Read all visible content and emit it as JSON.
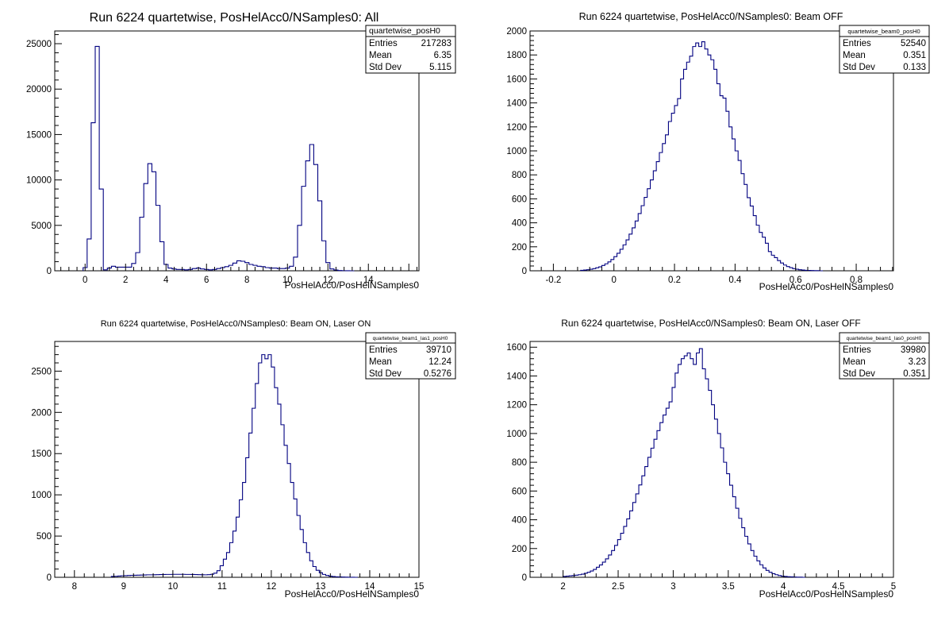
{
  "chart_data": [
    {
      "type": "histogram",
      "title": "Run 6224 quartetwise, PosHelAcc0/NSamples0: All",
      "xlabel": "PosHelAcc0/PosHelNSamples0",
      "ylabel": "",
      "xlim": [
        -1.5,
        16.5
      ],
      "ylim": [
        0,
        26400
      ],
      "xticks": [
        0,
        2,
        4,
        6,
        8,
        10,
        12,
        14
      ],
      "yticks": [
        0,
        5000,
        10000,
        15000,
        20000,
        25000
      ],
      "line_color": "#000080",
      "stats": {
        "name": "quartetwise_posH0",
        "rows": [
          {
            "label": "Entries",
            "value": "217283"
          },
          {
            "label": "Mean",
            "value": "6.35"
          },
          {
            "label": "Std Dev",
            "value": "5.115"
          }
        ]
      },
      "bin_edges_start": -0.1,
      "bin_width": 0.2,
      "counts": [
        350,
        3500,
        16300,
        24700,
        9000,
        100,
        300,
        500,
        400,
        400,
        400,
        400,
        800,
        2000,
        5900,
        9600,
        11800,
        10900,
        7200,
        3200,
        700,
        300,
        200,
        150,
        150,
        100,
        150,
        250,
        300,
        200,
        150,
        100,
        150,
        250,
        350,
        450,
        600,
        850,
        1100,
        1050,
        900,
        700,
        600,
        500,
        450,
        350,
        300,
        300,
        250,
        250,
        300,
        500,
        1500,
        5000,
        9300,
        12100,
        13900,
        11700,
        7700,
        3300,
        900,
        200,
        80,
        30,
        10,
        5,
        0
      ]
    },
    {
      "type": "histogram",
      "title": "Run 6224 quartetwise, PosHelAcc0/NSamples0: Beam OFF",
      "xlabel": "PosHelAcc0/PosHelNSamples0",
      "ylabel": "",
      "xlim": [
        -0.277,
        0.923
      ],
      "ylim": [
        0,
        2000
      ],
      "xticks": [
        -0.2,
        0,
        0.2,
        0.4,
        0.6,
        0.8
      ],
      "yticks": [
        0,
        200,
        400,
        600,
        800,
        1000,
        1200,
        1400,
        1600,
        1800,
        2000
      ],
      "line_color": "#000080",
      "stats": {
        "name": "quartetwise_beam0_posH0",
        "rows": [
          {
            "label": "Entries",
            "value": "52540"
          },
          {
            "label": "Mean",
            "value": "0.351"
          },
          {
            "label": "Std Dev",
            "value": "0.133"
          }
        ]
      },
      "bin_edges_start": -0.11,
      "bin_width": 0.01,
      "counts": [
        4,
        6,
        9,
        13,
        18,
        25,
        33,
        44,
        58,
        74,
        94,
        118,
        146,
        179,
        216,
        258,
        306,
        358,
        415,
        477,
        543,
        612,
        684,
        758,
        834,
        910,
        986,
        1061,
        1134,
        1245,
        1314,
        1378,
        1436,
        1600,
        1680,
        1740,
        1790,
        1870,
        1900,
        1870,
        1910,
        1850,
        1800,
        1760,
        1680,
        1560,
        1460,
        1440,
        1330,
        1200,
        1100,
        1000,
        920,
        810,
        720,
        610,
        540,
        460,
        380,
        320,
        280,
        230,
        160,
        130,
        110,
        85,
        65,
        48,
        35,
        26,
        18,
        13,
        9,
        6,
        4,
        3,
        2,
        1,
        1,
        0
      ]
    },
    {
      "type": "histogram",
      "title": "Run 6224 quartetwise, PosHelAcc0/NSamples0: Beam ON, Laser ON",
      "xlabel": "PosHelAcc0/PosHelNSamples0",
      "ylabel": "",
      "xlim": [
        7.6,
        15.0
      ],
      "ylim": [
        0,
        2860
      ],
      "xticks": [
        8,
        9,
        10,
        11,
        12,
        13,
        14,
        15
      ],
      "yticks": [
        0,
        500,
        1000,
        1500,
        2000,
        2500
      ],
      "line_color": "#000080",
      "stats": {
        "name": "quartetwise_beam1_las1_posH0",
        "rows": [
          {
            "label": "Entries",
            "value": "39710"
          },
          {
            "label": "Mean",
            "value": "12.24"
          },
          {
            "label": "Std Dev",
            "value": "0.5276"
          }
        ]
      },
      "bin_edges_start": 8.75,
      "bin_width": 0.065,
      "counts": [
        10,
        12,
        15,
        18,
        20,
        22,
        24,
        25,
        26,
        27,
        28,
        30,
        30,
        31,
        32,
        33,
        34,
        35,
        35,
        36,
        36,
        36,
        36,
        35,
        35,
        34,
        33,
        32,
        31,
        30,
        32,
        36,
        50,
        80,
        140,
        220,
        300,
        420,
        560,
        730,
        940,
        1150,
        1450,
        1750,
        2050,
        2350,
        2600,
        2700,
        2650,
        2700,
        2550,
        2300,
        2100,
        1850,
        1600,
        1380,
        1150,
        950,
        750,
        580,
        420,
        300,
        200,
        130,
        85,
        55,
        35,
        22,
        14,
        9,
        6,
        4,
        3,
        2,
        1,
        1,
        0
      ]
    },
    {
      "type": "histogram",
      "title": "Run 6224 quartetwise, PosHelAcc0/NSamples0: Beam ON, Laser OFF",
      "xlabel": "PosHelAcc0/PosHelNSamples0",
      "ylabel": "",
      "xlim": [
        1.7,
        5.0
      ],
      "ylim": [
        0,
        1640
      ],
      "xticks": [
        2,
        2.5,
        3,
        3.5,
        4,
        4.5,
        5
      ],
      "yticks": [
        0,
        200,
        400,
        600,
        800,
        1000,
        1200,
        1400,
        1600
      ],
      "line_color": "#000080",
      "stats": {
        "name": "quartetwise_beam1_las0_posH0",
        "rows": [
          {
            "label": "Entries",
            "value": "39980"
          },
          {
            "label": "Mean",
            "value": "3.23"
          },
          {
            "label": "Std Dev",
            "value": "0.351"
          }
        ]
      },
      "bin_edges_start": 2.0,
      "bin_width": 0.0275,
      "counts": [
        6,
        8,
        10,
        12,
        15,
        18,
        22,
        28,
        35,
        44,
        55,
        70,
        86,
        105,
        128,
        155,
        186,
        222,
        262,
        306,
        354,
        406,
        462,
        520,
        580,
        642,
        706,
        770,
        834,
        898,
        960,
        1020,
        1076,
        1128,
        1176,
        1220,
        1320,
        1420,
        1480,
        1520,
        1540,
        1560,
        1520,
        1480,
        1560,
        1590,
        1450,
        1380,
        1300,
        1200,
        1100,
        1000,
        900,
        800,
        720,
        640,
        560,
        480,
        410,
        345,
        285,
        232,
        186,
        147,
        114,
        87,
        65,
        48,
        35,
        25,
        18,
        12,
        8,
        6,
        4,
        3,
        2,
        1,
        1,
        0
      ]
    }
  ]
}
